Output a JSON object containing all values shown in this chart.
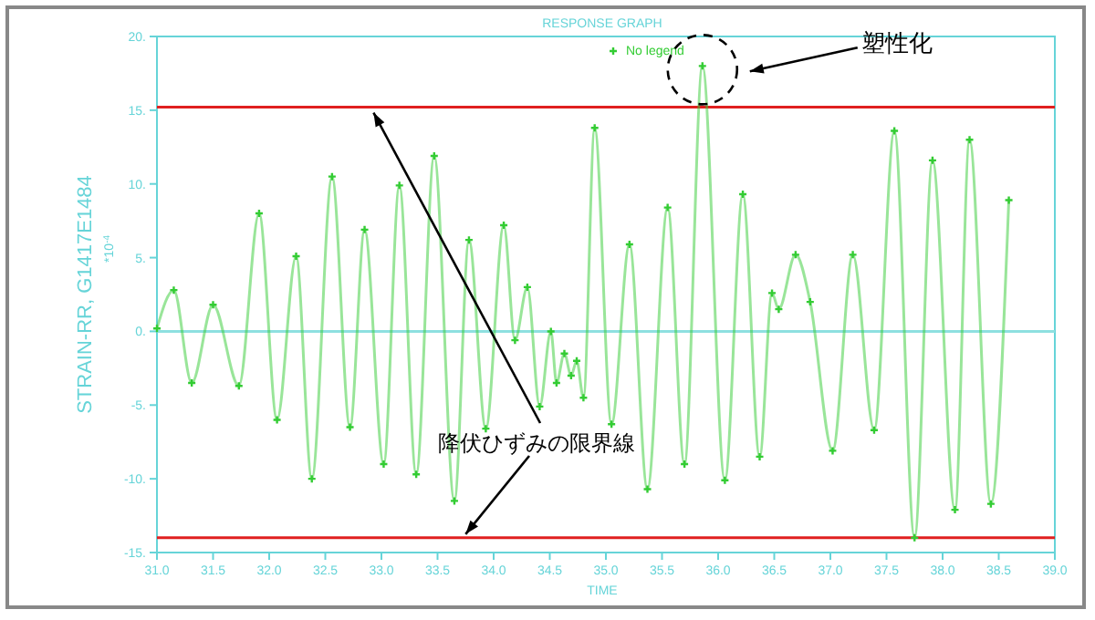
{
  "chart_data": {
    "type": "line",
    "title": "RESPONSE GRAPH",
    "xlabel": "TIME",
    "ylabel": "STRAIN-RR, G1417E1484",
    "x": [
      31.0,
      31.15,
      31.31,
      31.5,
      31.73,
      31.91,
      32.07,
      32.24,
      32.38,
      32.56,
      32.72,
      32.85,
      33.02,
      33.16,
      33.31,
      33.47,
      33.65,
      33.78,
      33.93,
      34.09,
      34.19,
      34.3,
      34.41,
      34.51,
      34.56,
      34.63,
      34.69,
      34.74,
      34.8,
      34.9,
      35.05,
      35.21,
      35.37,
      35.55,
      35.7,
      35.86,
      36.06,
      36.22,
      36.37,
      36.48,
      36.54,
      36.69,
      36.82,
      37.02,
      37.2,
      37.39,
      37.57,
      37.75,
      37.91,
      38.11,
      38.24,
      38.43,
      38.59
    ],
    "series": [
      {
        "name": "No legend",
        "color": "#33cc33",
        "values": [
          0.2,
          2.8,
          -3.5,
          1.8,
          -3.7,
          8.0,
          -6.0,
          5.1,
          -10.0,
          10.5,
          -6.5,
          6.9,
          -9.0,
          9.9,
          -9.7,
          11.9,
          -11.5,
          6.2,
          -6.6,
          7.2,
          -0.6,
          3.0,
          -5.1,
          0.0,
          -3.5,
          -1.5,
          -3.0,
          -2.0,
          -4.5,
          13.8,
          -6.3,
          5.9,
          -10.7,
          8.4,
          -9.0,
          18.0,
          -10.1,
          9.3,
          -8.5,
          2.6,
          1.5,
          5.2,
          2.0,
          -8.1,
          5.2,
          -6.7,
          13.6,
          -14.0,
          11.6,
          -12.1,
          13.0,
          -11.7,
          8.9
        ]
      }
    ],
    "xlim": [
      31.0,
      39.0
    ],
    "xticks": [
      {
        "value": 31.0,
        "label": "31.0"
      },
      {
        "value": 31.5,
        "label": "31.5"
      },
      {
        "value": 32.0,
        "label": "32.0"
      },
      {
        "value": 32.5,
        "label": "32.5"
      },
      {
        "value": 33.0,
        "label": "33.0"
      },
      {
        "value": 33.5,
        "label": "33.5"
      },
      {
        "value": 34.0,
        "label": "34.0"
      },
      {
        "value": 34.5,
        "label": "34.5"
      },
      {
        "value": 35.0,
        "label": "35.0"
      },
      {
        "value": 35.5,
        "label": "35.5"
      },
      {
        "value": 36.0,
        "label": "36.0"
      },
      {
        "value": 36.5,
        "label": "36.5"
      },
      {
        "value": 37.0,
        "label": "37.0"
      },
      {
        "value": 37.5,
        "label": "37.5"
      },
      {
        "value": 38.0,
        "label": "38.0"
      },
      {
        "value": 38.5,
        "label": "38.5"
      },
      {
        "value": 39.0,
        "label": "39.0"
      }
    ],
    "ylim": [
      -15,
      20
    ],
    "yticks": [
      {
        "value": -15,
        "label": "-15."
      },
      {
        "value": -10,
        "label": "-10."
      },
      {
        "value": -5,
        "label": "-5."
      },
      {
        "value": 0,
        "label": "0."
      },
      {
        "value": 5,
        "label": "5."
      },
      {
        "value": 10,
        "label": "10."
      },
      {
        "value": 15,
        "label": "15."
      },
      {
        "value": 20,
        "label": "20."
      }
    ],
    "ref_lines": [
      {
        "axis": "y",
        "value": 15.2,
        "color": "#e02020"
      },
      {
        "axis": "y",
        "value": -14.0,
        "color": "#e02020"
      },
      {
        "axis": "y",
        "value": 0,
        "color": "#8ee0e0"
      }
    ],
    "annotations": [
      "塑性化",
      {
        "text": "降伏ひずみの限界線",
        "x": 32.93,
        "y": 15.2
      },
      "*10$^{-4}$"
    ],
    "marker": "cross",
    "line_style": "solid",
    "legend": "top",
    "grid": false
  }
}
